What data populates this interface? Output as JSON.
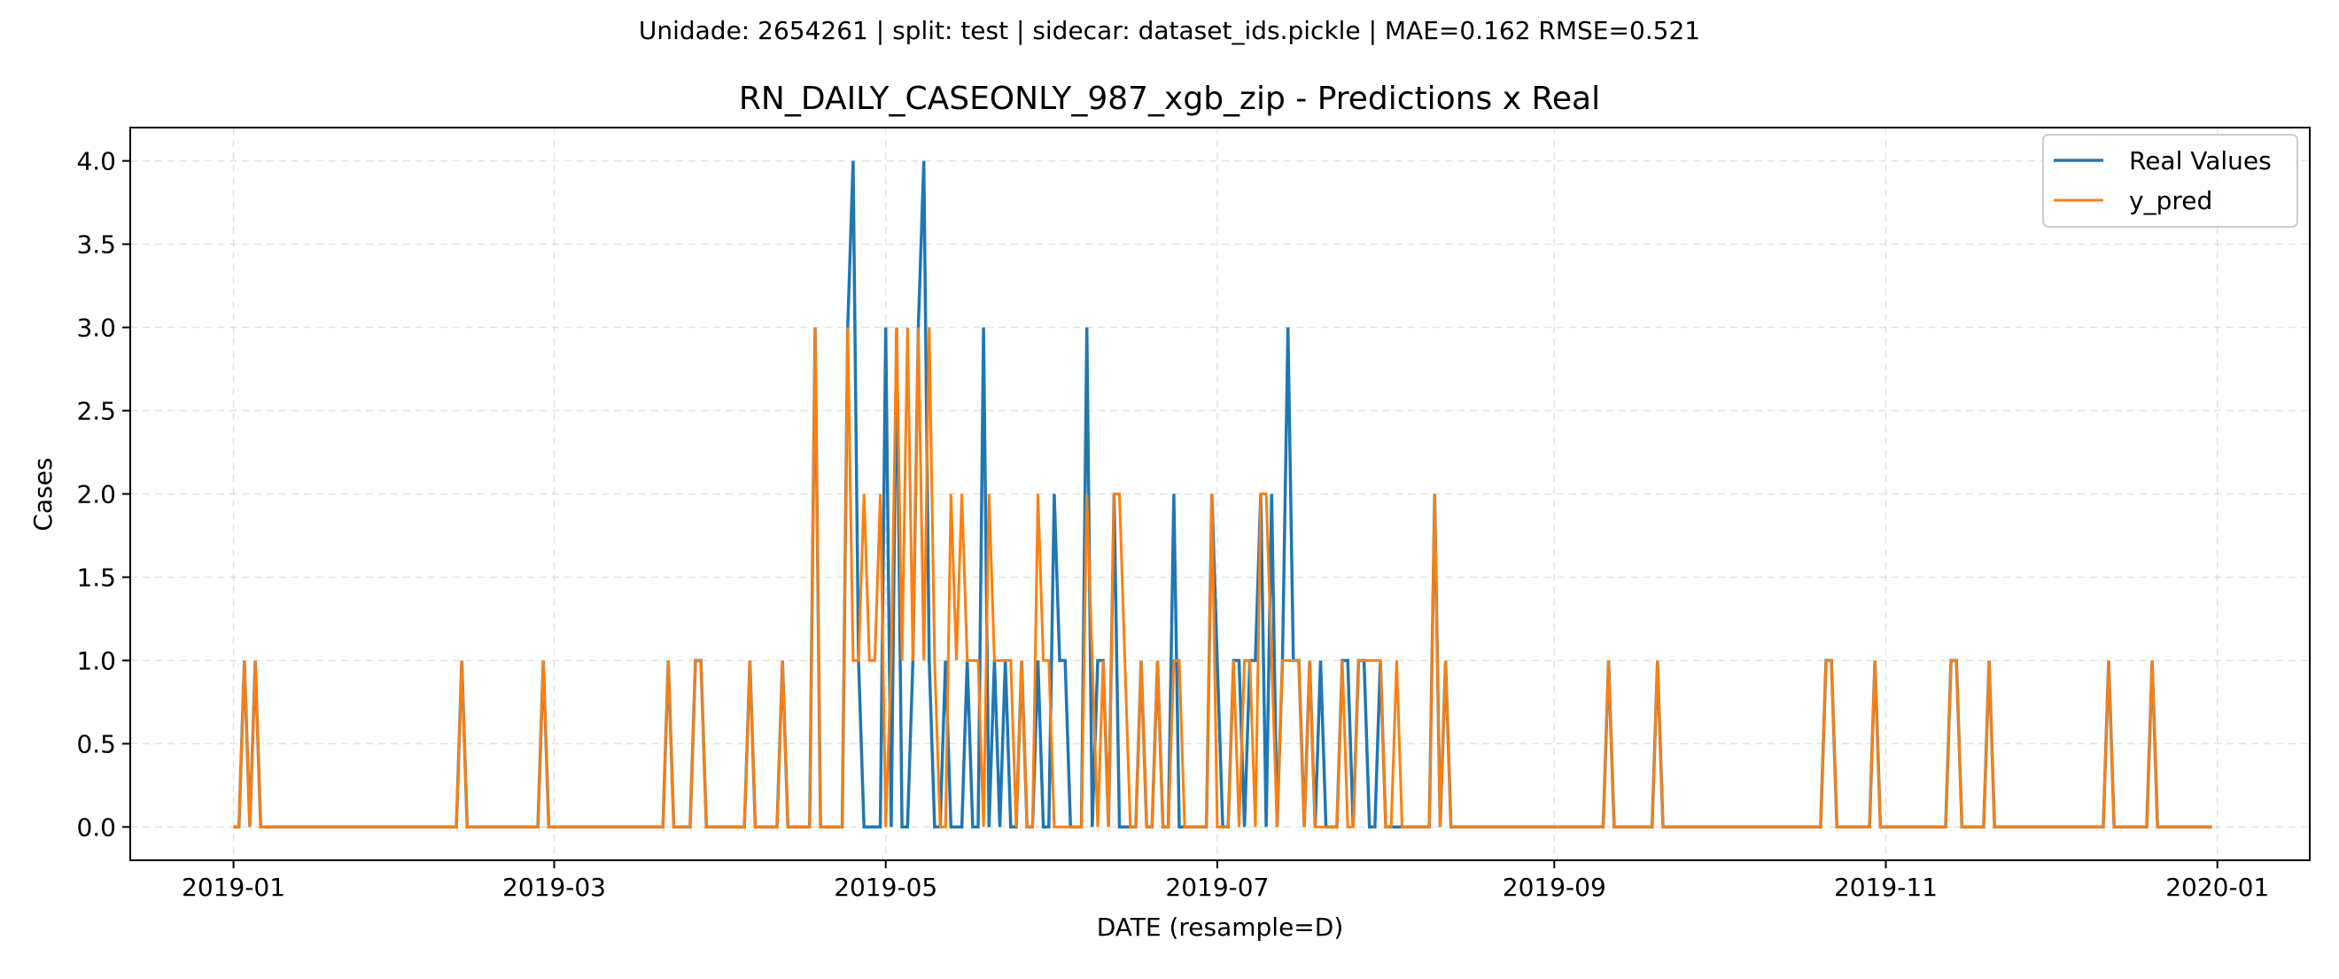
{
  "suptitle": "Unidade: 2654261 | split: test | sidecar: dataset_ids.pickle | MAE=0.162  RMSE=0.521",
  "chart_data": {
    "type": "line",
    "title": "RN_DAILY_CASEONLY_987_xgb_zip - Predictions x Real",
    "xlabel": "DATE (resample=D)",
    "ylabel": "Cases",
    "x_range": [
      "2019-01-01",
      "2019-12-31"
    ],
    "xlim": [
      "2018-12-13",
      "2020-01-18"
    ],
    "ylim": [
      -0.2,
      4.2
    ],
    "x_ticks": [
      "2019-01",
      "2019-03",
      "2019-05",
      "2019-07",
      "2019-09",
      "2019-11",
      "2020-01"
    ],
    "y_ticks": [
      "0.0",
      "0.5",
      "1.0",
      "1.5",
      "2.0",
      "2.5",
      "3.0",
      "3.5",
      "4.0"
    ],
    "grid": true,
    "legend_position": "upper right",
    "series": [
      {
        "name": "Real Values",
        "color": "#1f77b4",
        "default": 0,
        "points": [
          [
            "2019-01-03",
            1
          ],
          [
            "2019-01-05",
            1
          ],
          [
            "2019-02-12",
            1
          ],
          [
            "2019-02-27",
            1
          ],
          [
            "2019-03-22",
            1
          ],
          [
            "2019-03-27",
            1
          ],
          [
            "2019-03-28",
            1
          ],
          [
            "2019-04-06",
            1
          ],
          [
            "2019-04-12",
            1
          ],
          [
            "2019-04-18",
            3
          ],
          [
            "2019-04-24",
            3
          ],
          [
            "2019-04-25",
            4
          ],
          [
            "2019-04-26",
            1
          ],
          [
            "2019-05-01",
            3
          ],
          [
            "2019-05-03",
            3
          ],
          [
            "2019-05-06",
            1
          ],
          [
            "2019-05-07",
            3
          ],
          [
            "2019-05-08",
            4
          ],
          [
            "2019-05-09",
            1
          ],
          [
            "2019-05-12",
            1
          ],
          [
            "2019-05-16",
            1
          ],
          [
            "2019-05-19",
            3
          ],
          [
            "2019-05-21",
            1
          ],
          [
            "2019-05-23",
            1
          ],
          [
            "2019-05-26",
            1
          ],
          [
            "2019-05-29",
            1
          ],
          [
            "2019-06-01",
            2
          ],
          [
            "2019-06-02",
            1
          ],
          [
            "2019-06-03",
            1
          ],
          [
            "2019-06-07",
            3
          ],
          [
            "2019-06-09",
            1
          ],
          [
            "2019-06-10",
            1
          ],
          [
            "2019-06-12",
            2
          ],
          [
            "2019-06-17",
            1
          ],
          [
            "2019-06-20",
            1
          ],
          [
            "2019-06-23",
            2
          ],
          [
            "2019-06-30",
            2
          ],
          [
            "2019-07-01",
            1
          ],
          [
            "2019-07-04",
            1
          ],
          [
            "2019-07-05",
            1
          ],
          [
            "2019-07-07",
            1
          ],
          [
            "2019-07-08",
            1
          ],
          [
            "2019-07-09",
            2
          ],
          [
            "2019-07-11",
            2
          ],
          [
            "2019-07-13",
            1
          ],
          [
            "2019-07-14",
            3
          ],
          [
            "2019-07-15",
            1
          ],
          [
            "2019-07-16",
            1
          ],
          [
            "2019-07-18",
            1
          ],
          [
            "2019-07-20",
            1
          ],
          [
            "2019-07-24",
            1
          ],
          [
            "2019-07-25",
            1
          ],
          [
            "2019-07-27",
            1
          ],
          [
            "2019-07-28",
            1
          ],
          [
            "2019-07-31",
            1
          ],
          [
            "2019-08-10",
            2
          ],
          [
            "2019-08-12",
            1
          ],
          [
            "2019-09-11",
            1
          ],
          [
            "2019-09-20",
            1
          ],
          [
            "2019-10-21",
            1
          ],
          [
            "2019-10-22",
            1
          ],
          [
            "2019-10-30",
            1
          ],
          [
            "2019-11-13",
            1
          ],
          [
            "2019-11-14",
            1
          ],
          [
            "2019-11-20",
            1
          ],
          [
            "2019-12-12",
            1
          ],
          [
            "2019-12-20",
            1
          ]
        ]
      },
      {
        "name": "y_pred",
        "color": "#ff7f0e",
        "default": 0,
        "points": [
          [
            "2019-01-03",
            1
          ],
          [
            "2019-01-05",
            1
          ],
          [
            "2019-02-12",
            1
          ],
          [
            "2019-02-27",
            1
          ],
          [
            "2019-03-22",
            1
          ],
          [
            "2019-03-27",
            1
          ],
          [
            "2019-03-28",
            1
          ],
          [
            "2019-04-06",
            1
          ],
          [
            "2019-04-12",
            1
          ],
          [
            "2019-04-18",
            3
          ],
          [
            "2019-04-24",
            3
          ],
          [
            "2019-04-25",
            1
          ],
          [
            "2019-04-26",
            1
          ],
          [
            "2019-04-27",
            2
          ],
          [
            "2019-04-28",
            1
          ],
          [
            "2019-04-29",
            1
          ],
          [
            "2019-04-30",
            2
          ],
          [
            "2019-05-02",
            1
          ],
          [
            "2019-05-03",
            3
          ],
          [
            "2019-05-04",
            1
          ],
          [
            "2019-05-05",
            3
          ],
          [
            "2019-05-06",
            1
          ],
          [
            "2019-05-07",
            3
          ],
          [
            "2019-05-08",
            1
          ],
          [
            "2019-05-09",
            3
          ],
          [
            "2019-05-10",
            1
          ],
          [
            "2019-05-13",
            2
          ],
          [
            "2019-05-14",
            1
          ],
          [
            "2019-05-15",
            2
          ],
          [
            "2019-05-16",
            1
          ],
          [
            "2019-05-17",
            1
          ],
          [
            "2019-05-18",
            1
          ],
          [
            "2019-05-20",
            2
          ],
          [
            "2019-05-21",
            1
          ],
          [
            "2019-05-22",
            1
          ],
          [
            "2019-05-23",
            1
          ],
          [
            "2019-05-24",
            1
          ],
          [
            "2019-05-26",
            1
          ],
          [
            "2019-05-29",
            2
          ],
          [
            "2019-05-30",
            1
          ],
          [
            "2019-05-31",
            1
          ],
          [
            "2019-06-07",
            2
          ],
          [
            "2019-06-08",
            1
          ],
          [
            "2019-06-10",
            1
          ],
          [
            "2019-06-12",
            2
          ],
          [
            "2019-06-13",
            2
          ],
          [
            "2019-06-14",
            1
          ],
          [
            "2019-06-17",
            1
          ],
          [
            "2019-06-20",
            1
          ],
          [
            "2019-06-23",
            1
          ],
          [
            "2019-06-24",
            1
          ],
          [
            "2019-06-30",
            2
          ],
          [
            "2019-07-04",
            1
          ],
          [
            "2019-07-06",
            1
          ],
          [
            "2019-07-07",
            1
          ],
          [
            "2019-07-09",
            2
          ],
          [
            "2019-07-10",
            2
          ],
          [
            "2019-07-11",
            1
          ],
          [
            "2019-07-13",
            1
          ],
          [
            "2019-07-14",
            1
          ],
          [
            "2019-07-15",
            1
          ],
          [
            "2019-07-16",
            1
          ],
          [
            "2019-07-18",
            1
          ],
          [
            "2019-07-24",
            1
          ],
          [
            "2019-07-27",
            1
          ],
          [
            "2019-07-28",
            1
          ],
          [
            "2019-07-29",
            1
          ],
          [
            "2019-07-30",
            1
          ],
          [
            "2019-07-31",
            1
          ],
          [
            "2019-08-03",
            1
          ],
          [
            "2019-08-10",
            2
          ],
          [
            "2019-08-12",
            1
          ],
          [
            "2019-09-11",
            1
          ],
          [
            "2019-09-20",
            1
          ],
          [
            "2019-10-21",
            1
          ],
          [
            "2019-10-22",
            1
          ],
          [
            "2019-10-30",
            1
          ],
          [
            "2019-11-13",
            1
          ],
          [
            "2019-11-14",
            1
          ],
          [
            "2019-11-20",
            1
          ],
          [
            "2019-12-12",
            1
          ],
          [
            "2019-12-20",
            1
          ]
        ]
      }
    ]
  }
}
